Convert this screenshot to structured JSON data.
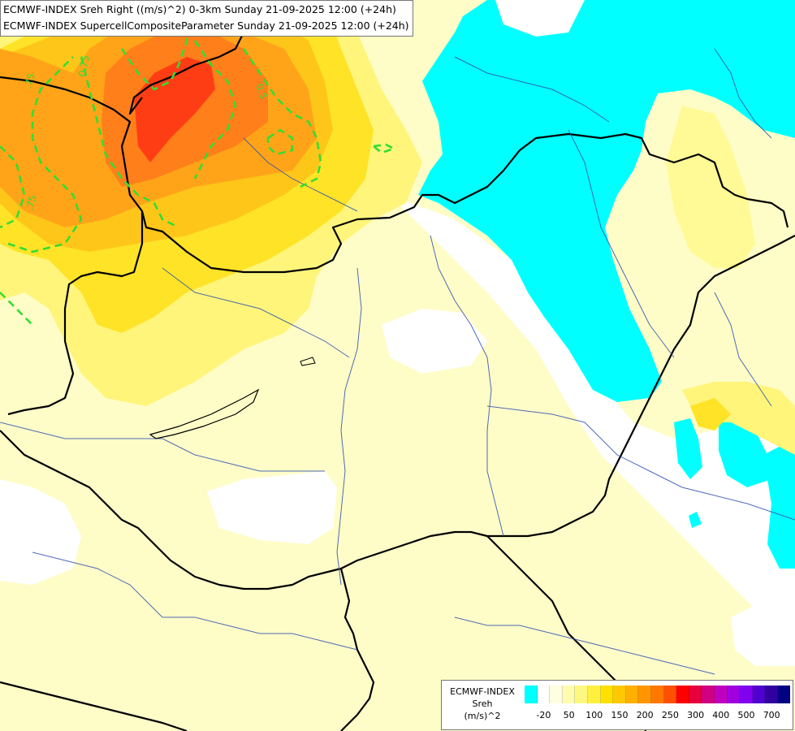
{
  "title_lines": [
    "ECMWF-INDEX Sreh Right ((m/s)^2) 0-3km Sunday 21-09-2025 12:00 (+24h)",
    "ECMWF-INDEX SupercellCompositeParameter Sunday 21-09-2025 12:00 (+24h)"
  ],
  "contour_labels": [
    ".75",
    "0.75",
    "0.5",
    ".75"
  ],
  "legend": {
    "line1": "ECMWF-INDEX",
    "line2": "Sreh",
    "line3": "(m/s)^2",
    "colors": [
      "#00ffff",
      "#ffffff",
      "#fffee0",
      "#fffcb0",
      "#fff880",
      "#fff040",
      "#ffe000",
      "#ffc800",
      "#ffb000",
      "#ff9600",
      "#ff7800",
      "#ff5000",
      "#ff0000",
      "#e8003c",
      "#d00080",
      "#c000c0",
      "#a000e0",
      "#8000f0",
      "#5000d0",
      "#3000a0",
      "#000080"
    ],
    "ticks": [
      {
        "label": "-20",
        "index": 1
      },
      {
        "label": "50",
        "index": 3
      },
      {
        "label": "100",
        "index": 5
      },
      {
        "label": "150",
        "index": 7
      },
      {
        "label": "200",
        "index": 9
      },
      {
        "label": "250",
        "index": 11
      },
      {
        "label": "300",
        "index": 13
      },
      {
        "label": "400",
        "index": 15
      },
      {
        "label": "500",
        "index": 17
      },
      {
        "label": "700",
        "index": 19
      }
    ]
  }
}
